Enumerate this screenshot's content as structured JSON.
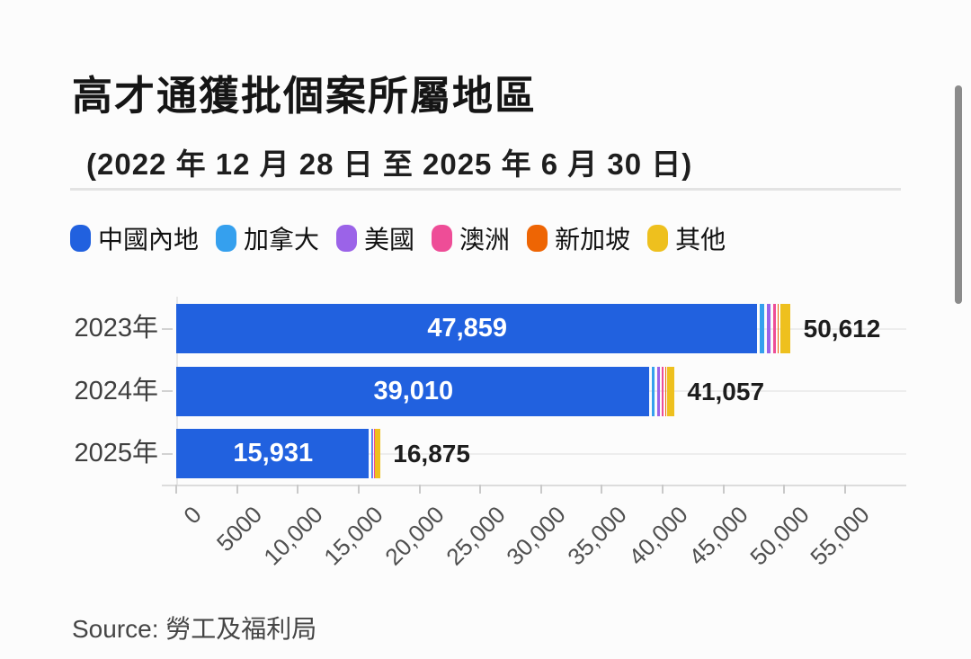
{
  "header": {
    "title": "高才通獲批個案所屬地區",
    "subtitle": "(2022 年 12 月 28 日 至 2025 年 6 月 30 日)"
  },
  "legend": [
    {
      "label": "中國內地",
      "color": "#2161df"
    },
    {
      "label": "加拿大",
      "color": "#35a0ee"
    },
    {
      "label": "美國",
      "color": "#9b63e8"
    },
    {
      "label": "澳洲",
      "color": "#ee4d97"
    },
    {
      "label": "新加坡",
      "color": "#ee6504"
    },
    {
      "label": "其他",
      "color": "#eec01e"
    }
  ],
  "chart_data": {
    "type": "bar",
    "orientation": "horizontal",
    "stacked": true,
    "title": "高才通獲批個案所屬地區",
    "subtitle": "(2022 年 12 月 28 日 至 2025 年 6 月 30 日)",
    "categories": [
      "2023年",
      "2024年",
      "2025年"
    ],
    "series_names": [
      "中國內地",
      "加拿大",
      "美國",
      "澳洲",
      "新加坡",
      "其他"
    ],
    "series_colors": [
      "#2161df",
      "#35a0ee",
      "#9b63e8",
      "#ee4d97",
      "#ee6504",
      "#eec01e"
    ],
    "rows": [
      {
        "category": "2023年",
        "values": [
          47859,
          590,
          520,
          400,
          200,
          1043
        ],
        "value_label": "47,859",
        "total": 50612,
        "total_label": "50,612"
      },
      {
        "category": "2024年",
        "values": [
          39010,
          440,
          390,
          300,
          130,
          787
        ],
        "value_label": "39,010",
        "total": 41057,
        "total_label": "41,057"
      },
      {
        "category": "2025年",
        "values": [
          15931,
          120,
          110,
          80,
          40,
          594
        ],
        "value_label": "15,931",
        "total": 16875,
        "total_label": "16,875"
      }
    ],
    "minor_segments_estimated_from_pixels": true,
    "x_tick_labels": [
      "0",
      "5000",
      "10,000",
      "15,000",
      "20,000",
      "25,000",
      "30,000",
      "35,000",
      "40,000",
      "45,000",
      "50,000",
      "55,000"
    ],
    "x_tick_values": [
      0,
      5000,
      10000,
      15000,
      20000,
      25000,
      30000,
      35000,
      40000,
      45000,
      50000,
      55000
    ],
    "xlim": [
      0,
      55000
    ],
    "grid": "category-center-lines",
    "legend_position": "top"
  },
  "source": {
    "text": "Source: 勞工及福利局"
  }
}
